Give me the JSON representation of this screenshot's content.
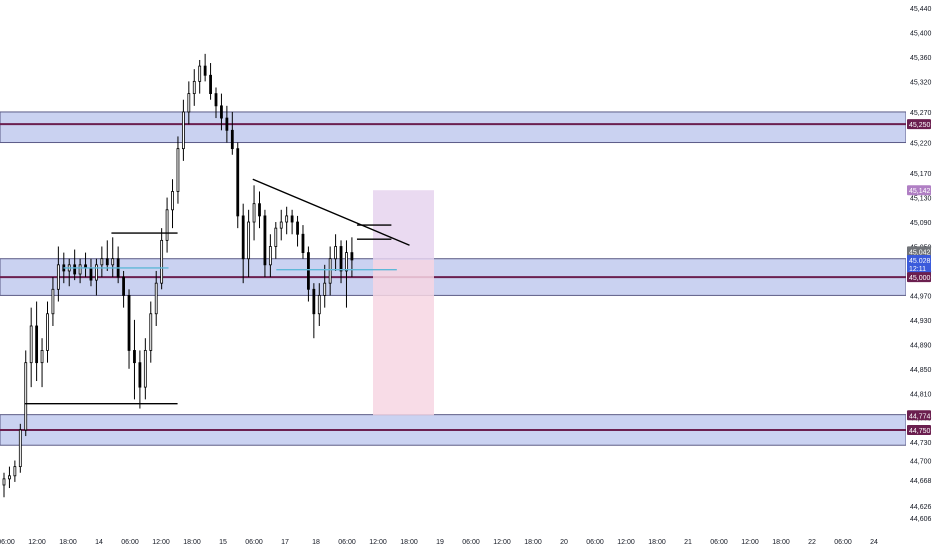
{
  "chart_data": {
    "type": "candlestick",
    "title": "",
    "xlabel": "",
    "ylabel": "",
    "ylim": [
      44606,
      45440
    ],
    "colors": {
      "up": "#000000",
      "down": "#000000",
      "zone_fill": "#c5cef0",
      "zone_border": "#4a4a7a",
      "level_line": "#6b1f4f",
      "stop_zone": "#f7d6e3",
      "target_zone": "#e6d3ef",
      "cyan_line": "#5fb8d8",
      "axis_text": "#131722",
      "price_badge": "#707378"
    },
    "x_ticks": [
      "06:00",
      "12:00",
      "18:00",
      "14",
      "06:00",
      "12:00",
      "18:00",
      "15",
      "06:00",
      "17",
      "18",
      "06:00",
      "12:00",
      "18:00",
      "19",
      "06:00",
      "12:00",
      "18:00",
      "20",
      "06:00",
      "12:00",
      "18:00",
      "21",
      "06:00",
      "12:00",
      "18:00",
      "22",
      "06:00",
      "24"
    ],
    "y_ticks": [
      "45,440",
      "45,400",
      "45,360",
      "45,320",
      "45,270",
      "45,220",
      "45,170",
      "45,130",
      "45,090",
      "45,050",
      "45,010",
      "44,970",
      "44,930",
      "44,890",
      "44,850",
      "44,810",
      "44,770",
      "44,730",
      "44,700",
      "44,668",
      "44,626",
      "44,606"
    ],
    "zones": [
      {
        "low": 45220,
        "high": 45270,
        "level": 45250
      },
      {
        "low": 44970,
        "high": 45030,
        "level": 45000
      },
      {
        "low": 44725,
        "high": 44775,
        "level": 44750
      }
    ],
    "price_labels": [
      {
        "text": "45,250",
        "value": 45250,
        "role": "level"
      },
      {
        "text": "45,142",
        "value": 45142,
        "role": "target"
      },
      {
        "text": "45,042",
        "value": 45042,
        "role": "last"
      },
      {
        "text": "45,028",
        "value": 45028,
        "role": "current"
      },
      {
        "text": "12:11",
        "value": 45015,
        "role": "countdown"
      },
      {
        "text": "45,000",
        "value": 45000,
        "role": "level"
      },
      {
        "text": "44,774",
        "value": 44774,
        "role": "stop"
      },
      {
        "text": "44,750",
        "value": 44750,
        "role": "level"
      }
    ],
    "position": {
      "entry": 45028,
      "target": 45142,
      "stop": 44774
    },
    "trend_lines": [
      {
        "t1": 0.279,
        "p1": 45160,
        "t2": 0.452,
        "p2": 45052,
        "color": "#000000"
      },
      {
        "t1": 0.027,
        "p1": 44793,
        "t2": 0.196,
        "p2": 44793,
        "color": "#000000"
      },
      {
        "t1": 0.123,
        "p1": 45072,
        "t2": 0.196,
        "p2": 45072,
        "color": "#000000"
      },
      {
        "t1": 0.394,
        "p1": 45085,
        "t2": 0.432,
        "p2": 45085,
        "color": "#000000"
      },
      {
        "t1": 0.394,
        "p1": 45062,
        "t2": 0.432,
        "p2": 45062,
        "color": "#000000"
      },
      {
        "t1": 0.07,
        "p1": 45015,
        "t2": 0.186,
        "p2": 45015,
        "color": "#5fb8d8"
      },
      {
        "t1": 0.305,
        "p1": 45012,
        "t2": 0.438,
        "p2": 45012,
        "color": "#5fb8d8"
      }
    ],
    "series": [
      {
        "name": "",
        "candles": [
          [
            0.0,
            44660,
            44680,
            44640,
            44670
          ],
          [
            0.006,
            44670,
            44690,
            44655,
            44675
          ],
          [
            0.012,
            44675,
            44700,
            44665,
            44690
          ],
          [
            0.018,
            44690,
            44760,
            44680,
            44750
          ],
          [
            0.024,
            44750,
            44880,
            44740,
            44860
          ],
          [
            0.03,
            44860,
            44950,
            44820,
            44920
          ],
          [
            0.036,
            44920,
            44960,
            44830,
            44860
          ],
          [
            0.042,
            44860,
            44900,
            44820,
            44880
          ],
          [
            0.048,
            44880,
            44960,
            44860,
            44940
          ],
          [
            0.054,
            44940,
            45000,
            44920,
            44980
          ],
          [
            0.06,
            44980,
            45050,
            44960,
            45020
          ],
          [
            0.066,
            45020,
            45040,
            44990,
            45010
          ],
          [
            0.072,
            45010,
            45030,
            44985,
            45020
          ],
          [
            0.078,
            45020,
            45045,
            44995,
            45005
          ],
          [
            0.084,
            45005,
            45030,
            44990,
            45020
          ],
          [
            0.09,
            45020,
            45040,
            45000,
            45015
          ],
          [
            0.096,
            45015,
            45030,
            44985,
            44995
          ],
          [
            0.102,
            44995,
            45030,
            44970,
            45020
          ],
          [
            0.108,
            45020,
            45050,
            45000,
            45030
          ],
          [
            0.114,
            45030,
            45060,
            45010,
            45020
          ],
          [
            0.12,
            45020,
            45065,
            45000,
            45030
          ],
          [
            0.126,
            45030,
            45050,
            44990,
            45000
          ],
          [
            0.132,
            45000,
            45010,
            44950,
            44970
          ],
          [
            0.138,
            44970,
            44980,
            44850,
            44880
          ],
          [
            0.144,
            44880,
            44930,
            44800,
            44860
          ],
          [
            0.15,
            44860,
            44880,
            44785,
            44820
          ],
          [
            0.156,
            44820,
            44900,
            44800,
            44880
          ],
          [
            0.162,
            44880,
            44960,
            44860,
            44940
          ],
          [
            0.168,
            44940,
            45010,
            44920,
            44990
          ],
          [
            0.174,
            44990,
            45080,
            44980,
            45060
          ],
          [
            0.18,
            45060,
            45130,
            45040,
            45110
          ],
          [
            0.186,
            45110,
            45160,
            45080,
            45140
          ],
          [
            0.192,
            45140,
            45230,
            45120,
            45210
          ],
          [
            0.198,
            45210,
            45290,
            45190,
            45270
          ],
          [
            0.204,
            45270,
            45320,
            45250,
            45300
          ],
          [
            0.21,
            45300,
            45340,
            45280,
            45320
          ],
          [
            0.216,
            45320,
            45355,
            45300,
            45345
          ],
          [
            0.222,
            45345,
            45365,
            45320,
            45330
          ],
          [
            0.228,
            45330,
            45350,
            45290,
            45300
          ],
          [
            0.234,
            45300,
            45310,
            45260,
            45280
          ],
          [
            0.24,
            45280,
            45300,
            45240,
            45260
          ],
          [
            0.246,
            45260,
            45280,
            45220,
            45240
          ],
          [
            0.252,
            45240,
            45270,
            45200,
            45210
          ],
          [
            0.258,
            45210,
            45220,
            45080,
            45100
          ],
          [
            0.264,
            45100,
            45120,
            44990,
            45030
          ],
          [
            0.27,
            45030,
            45110,
            45000,
            45090
          ],
          [
            0.276,
            45090,
            45150,
            45060,
            45120
          ],
          [
            0.282,
            45120,
            45140,
            45080,
            45100
          ],
          [
            0.288,
            45100,
            45110,
            45000,
            45020
          ],
          [
            0.294,
            45020,
            45070,
            45000,
            45050
          ],
          [
            0.3,
            45050,
            45090,
            45030,
            45080
          ],
          [
            0.306,
            45080,
            45110,
            45060,
            45090
          ],
          [
            0.312,
            45090,
            45115,
            45070,
            45100
          ],
          [
            0.318,
            45100,
            45110,
            45070,
            45090
          ],
          [
            0.324,
            45090,
            45100,
            45050,
            45070
          ],
          [
            0.33,
            45070,
            45085,
            45030,
            45040
          ],
          [
            0.336,
            45040,
            45050,
            44960,
            44980
          ],
          [
            0.342,
            44980,
            44990,
            44900,
            44940
          ],
          [
            0.348,
            44940,
            44990,
            44920,
            44970
          ],
          [
            0.354,
            44970,
            45020,
            44950,
            44990
          ],
          [
            0.36,
            44990,
            45050,
            44970,
            45030
          ],
          [
            0.366,
            45030,
            45070,
            45010,
            45050
          ],
          [
            0.372,
            45050,
            45060,
            44990,
            45010
          ],
          [
            0.378,
            45010,
            45060,
            44950,
            45040
          ],
          [
            0.384,
            45040,
            45065,
            45000,
            45028
          ]
        ]
      }
    ]
  }
}
